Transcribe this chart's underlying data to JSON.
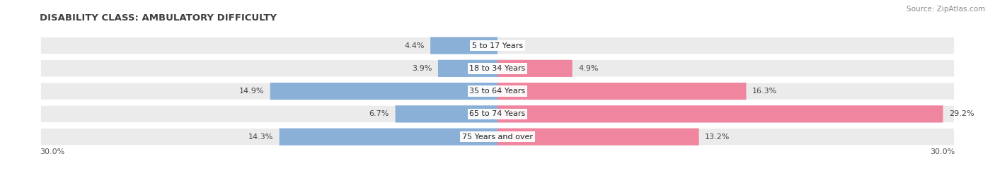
{
  "title": "DISABILITY CLASS: AMBULATORY DIFFICULTY",
  "source": "Source: ZipAtlas.com",
  "categories": [
    "5 to 17 Years",
    "18 to 34 Years",
    "35 to 64 Years",
    "65 to 74 Years",
    "75 Years and over"
  ],
  "male_values": [
    4.4,
    3.9,
    14.9,
    6.7,
    14.3
  ],
  "female_values": [
    0.0,
    4.9,
    16.3,
    29.2,
    13.2
  ],
  "max_val": 30.0,
  "male_color": "#8ab0d8",
  "female_color": "#f085a0",
  "row_bg_color": "#ebebeb",
  "row_alt_color": "#e0e0e0",
  "label_color": "#333333",
  "title_color": "#404040",
  "axis_label_color": "#555555",
  "legend_male_color": "#8ab0d8",
  "legend_female_color": "#f085a0",
  "bar_height": 0.75,
  "font_size": 8.0,
  "title_font_size": 9.5,
  "source_font_size": 7.5
}
